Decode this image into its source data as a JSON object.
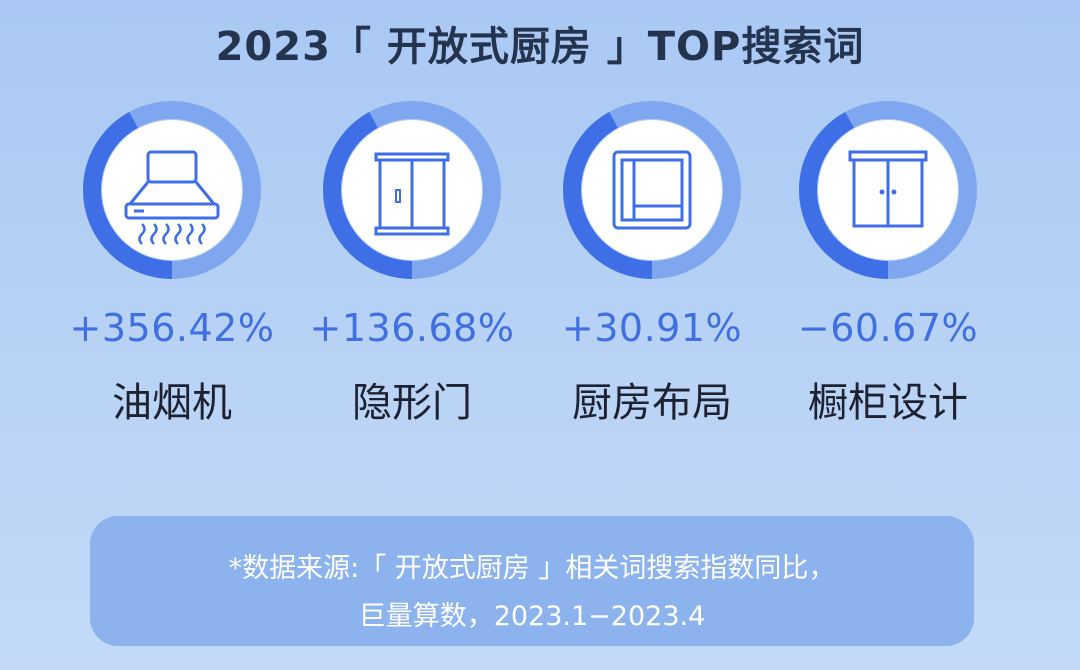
{
  "title": "2023「 开放式厨房 」TOP搜索词",
  "chart_data": {
    "type": "donut",
    "categories": [
      "油烟机",
      "隐形门",
      "厨房布局",
      "橱柜设计"
    ],
    "values": [
      356.42,
      136.68,
      30.91,
      -60.67
    ],
    "value_labels": [
      "+356.42%",
      "+136.68%",
      "+30.91%",
      "−60.67%"
    ],
    "unit": "%",
    "icons": [
      "range-hood-icon",
      "hidden-door-icon",
      "kitchen-layout-icon",
      "cabinet-icon"
    ]
  },
  "colors": {
    "ring_dark": "#3e6fe6",
    "ring_light": "#7fa7ef",
    "icon_bg": "#ffffff",
    "icon_stroke": "#3e6fe6",
    "percent_text": "#3f6fe0",
    "label_text": "#1d2233",
    "title_text": "#24344f",
    "note_bg": "#8db3ef"
  },
  "note": {
    "line1": "*数据来源:「 开放式厨房 」相关词搜索指数同比，",
    "line2": "巨量算数，2023.1−2023.4"
  }
}
